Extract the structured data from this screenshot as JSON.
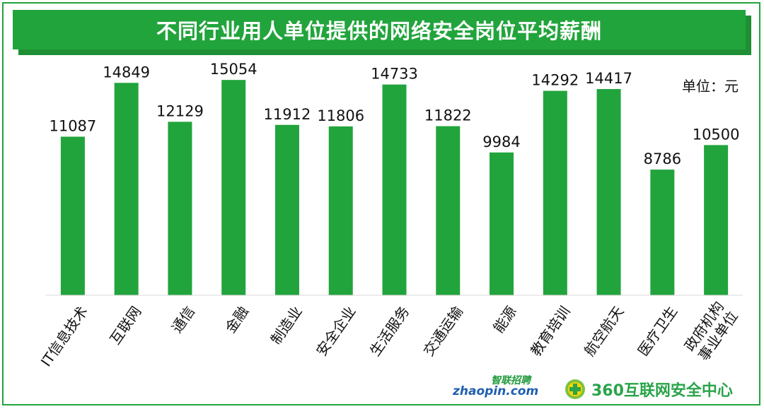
{
  "title": "不同行业用人单位提供的网络安全岗位平均薪酬",
  "unit_label": "单位：元",
  "colors": {
    "bar": "#22a43c",
    "title_bg": "#22a43c",
    "frame": "#22a43c"
  },
  "chart_data": {
    "type": "bar",
    "title": "不同行业用人单位提供的网络安全岗位平均薪酬",
    "categories": [
      "IT信息技术",
      "互联网",
      "通信",
      "金融",
      "制造业",
      "安全企业",
      "生活服务",
      "交通运输",
      "能源",
      "教育培训",
      "航空航天",
      "医疗卫生",
      "政府机构事业单位"
    ],
    "category_lines": [
      [
        "IT信息技术"
      ],
      [
        "互联网"
      ],
      [
        "通信"
      ],
      [
        "金融"
      ],
      [
        "制造业"
      ],
      [
        "安全企业"
      ],
      [
        "生活服务"
      ],
      [
        "交通运输"
      ],
      [
        "能源"
      ],
      [
        "教育培训"
      ],
      [
        "航空航天"
      ],
      [
        "医疗卫生"
      ],
      [
        "政府机构",
        "事业单位"
      ]
    ],
    "values": [
      11087,
      14849,
      12129,
      15054,
      11912,
      11806,
      14733,
      11822,
      9984,
      14292,
      14417,
      8786,
      10500
    ],
    "xlabel": "",
    "ylabel": "单位：元",
    "ylim": [
      0,
      16000
    ],
    "grid": false,
    "data_labels": true
  },
  "logos": {
    "zhaopin_cn": "智联招聘",
    "zhaopin_en": "zhaopin.com",
    "org_360": "360互联网安全中心"
  }
}
